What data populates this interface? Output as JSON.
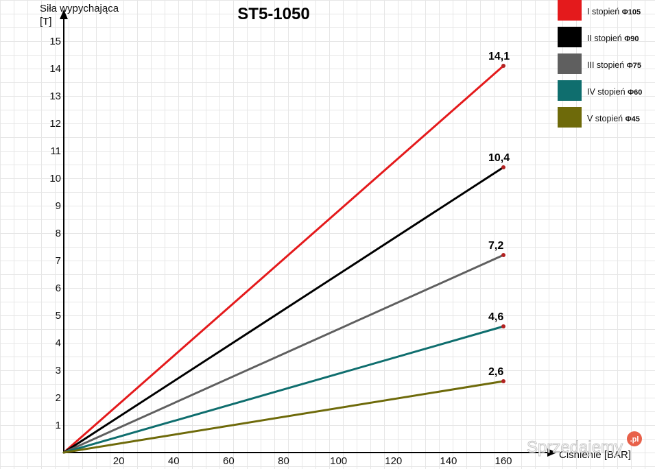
{
  "chart_data": {
    "type": "line",
    "title": "ST5-1050",
    "ylabel_line1": "Siła wypychająca",
    "ylabel_line2": "[T]",
    "xlabel": "Ciśnienie [BAR]",
    "xlim": [
      0,
      160
    ],
    "ylim": [
      0,
      15
    ],
    "x_ticks": [
      20,
      40,
      60,
      80,
      100,
      120,
      140,
      160
    ],
    "y_ticks": [
      1,
      2,
      3,
      4,
      5,
      6,
      7,
      8,
      9,
      10,
      11,
      12,
      13,
      14,
      15
    ],
    "grid": true,
    "legend_position": "top-right",
    "series": [
      {
        "name": "I stopień",
        "diameter": "Φ105",
        "color": "#e41a1c",
        "x": [
          0,
          160
        ],
        "y": [
          0,
          14.1
        ],
        "end_label": "14,1"
      },
      {
        "name": "II stopień",
        "diameter": "Φ90",
        "color": "#000000",
        "x": [
          0,
          160
        ],
        "y": [
          0,
          10.4
        ],
        "end_label": "10,4"
      },
      {
        "name": "III stopień",
        "diameter": "Φ75",
        "color": "#5f5f5f",
        "x": [
          0,
          160
        ],
        "y": [
          0,
          7.2
        ],
        "end_label": "7,2"
      },
      {
        "name": "IV stopień",
        "diameter": "Φ60",
        "color": "#0f6e6e",
        "x": [
          0,
          160
        ],
        "y": [
          0,
          4.6
        ],
        "end_label": "4,6"
      },
      {
        "name": "V stopień",
        "diameter": "Φ45",
        "color": "#6e6a0a",
        "x": [
          0,
          160
        ],
        "y": [
          0,
          2.6
        ],
        "end_label": "2,6"
      }
    ]
  },
  "watermark": {
    "text": "Sprzedajemy",
    "badge": ".pl"
  }
}
